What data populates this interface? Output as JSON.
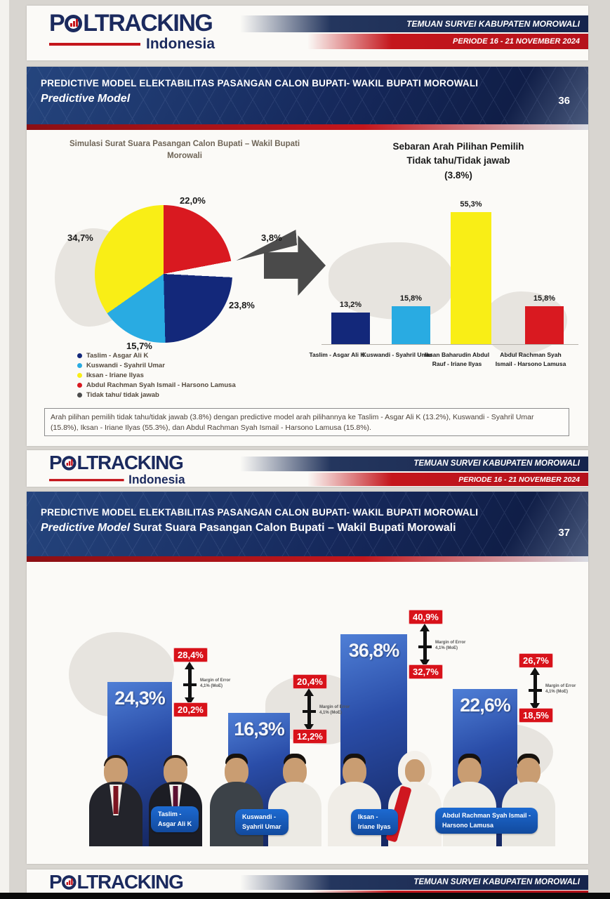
{
  "header": {
    "brand_p": "P",
    "brand_rest": "LTRACKING",
    "brand_sub": "Indonesia",
    "banner_title": "TEMUAN SURVEI KABUPATEN MOROWALI",
    "banner_period": "PERIODE 16 - 21 NOVEMBER 2024"
  },
  "slide36": {
    "page_number": "36",
    "title_line1": "PREDICTIVE MODEL ELEKTABILITAS PASANGAN CALON BUPATI- WAKIL BUPATI MOROWALI",
    "title_line2": "Predictive Model",
    "pie_title": "Simulasi Surat Suara Pasangan Calon Bupati – Wakil Bupati Morowali",
    "bar_title_line1": "Sebaran Arah Pilihan Pemilih",
    "bar_title_line2": "Tidak tahu/Tidak jawab",
    "bar_title_line3": "(3.8%)",
    "note": "Arah pilihan pemilih tidak tahu/tidak jawab (3.8%) dengan predictive model arah pilihannya ke Taslim - Asgar Ali K (13.2%), Kuswandi - Syahril Umar (15.8%), Iksan - Iriane Ilyas (55.3%), dan Abdul Rachman Syah Ismail - Harsono Lamusa (15.8%)."
  },
  "slide37": {
    "page_number": "37",
    "title_line1": "PREDICTIVE MODEL ELEKTABILITAS PASANGAN CALON BUPATI- WAKIL BUPATI MOROWALI",
    "title_line2_italic": "Predictive Model",
    "title_line2_rest": " Surat Suara Pasangan Calon Bupati – Wakil Bupati Morowali",
    "pills": [
      {
        "line1": "Taslim -",
        "line2": "Asgar Ali K"
      },
      {
        "line1": "Kuswandi -",
        "line2": "Syahril Umar"
      },
      {
        "line1": "Iksan -",
        "line2": "Iriane Ilyas"
      },
      {
        "line1": "Abdul Rachman Syah Ismail -",
        "line2": "Harsono Lamusa"
      }
    ]
  },
  "footer": {
    "banner_title": "TEMUAN SURVEI KABUPATEN MOROWALI"
  },
  "chart_data": [
    {
      "type": "pie",
      "title": "Simulasi Surat Suara Pasangan Calon Bupati – Wakil Bupati Morowali",
      "slices": [
        {
          "label": "Taslim - Asgar Ali K",
          "value": 23.8,
          "display": "23,8%",
          "color": "#13287a"
        },
        {
          "label": "Kuswandi - Syahril Umar",
          "value": 15.7,
          "display": "15,7%",
          "color": "#29abe2"
        },
        {
          "label": "Iksan - Iriane Ilyas",
          "value": 34.7,
          "display": "34,7%",
          "color": "#f9ee16"
        },
        {
          "label": "Abdul Rachman Syah Ismail - Harsono Lamusa",
          "value": 22.0,
          "display": "22,0%",
          "color": "#d91920"
        },
        {
          "label": "Tidak tahu/ tidak jawab",
          "value": 3.8,
          "display": "3,8%",
          "color": "#4d4d4d"
        }
      ],
      "legend_position": "bottom-left",
      "exploded_slice": "Tidak tahu/ tidak jawab"
    },
    {
      "type": "bar",
      "title": "Sebaran Arah Pilihan Pemilih Tidak tahu/Tidak jawab (3.8%)",
      "categories": [
        "Taslim - Asgar Ali K",
        "Kuswandi - Syahril Umar",
        "Iksan Baharudin Abdul Rauf - Iriane Ilyas",
        "Abdul Rachman Syah Ismail - Harsono Lamusa"
      ],
      "values": [
        13.2,
        15.8,
        55.3,
        15.8
      ],
      "display_values": [
        "13,2%",
        "15,8%",
        "55,3%",
        "15,8%"
      ],
      "colors": [
        "#13287a",
        "#29abe2",
        "#f9ee16",
        "#d91920"
      ],
      "ylim": [
        0,
        60
      ],
      "grid": false
    },
    {
      "type": "bar",
      "title": "Predictive Model Surat Suara Pasangan Calon Bupati – Wakil Bupati Morowali",
      "categories": [
        "Taslim - Asgar Ali K",
        "Kuswandi - Syahril Umar",
        "Iksan - Iriane Ilyas",
        "Abdul Rachman Syah Ismail - Harsono Lamusa"
      ],
      "values": [
        24.3,
        16.3,
        36.8,
        22.6
      ],
      "display_values": [
        "24,3%",
        "16,3%",
        "36,8%",
        "22,6%"
      ],
      "upper_bounds": [
        28.4,
        20.4,
        40.9,
        26.7
      ],
      "upper_display": [
        "28,4%",
        "20,4%",
        "40,9%",
        "26,7%"
      ],
      "lower_bounds": [
        20.2,
        12.2,
        32.7,
        18.5
      ],
      "lower_display": [
        "20,2%",
        "12,2%",
        "32,7%",
        "18,5%"
      ],
      "moe_line1": "Margin of Error",
      "moe_line2": "4,1% (MoE)",
      "bar_color": "#1c3d9b",
      "grid": false
    }
  ]
}
